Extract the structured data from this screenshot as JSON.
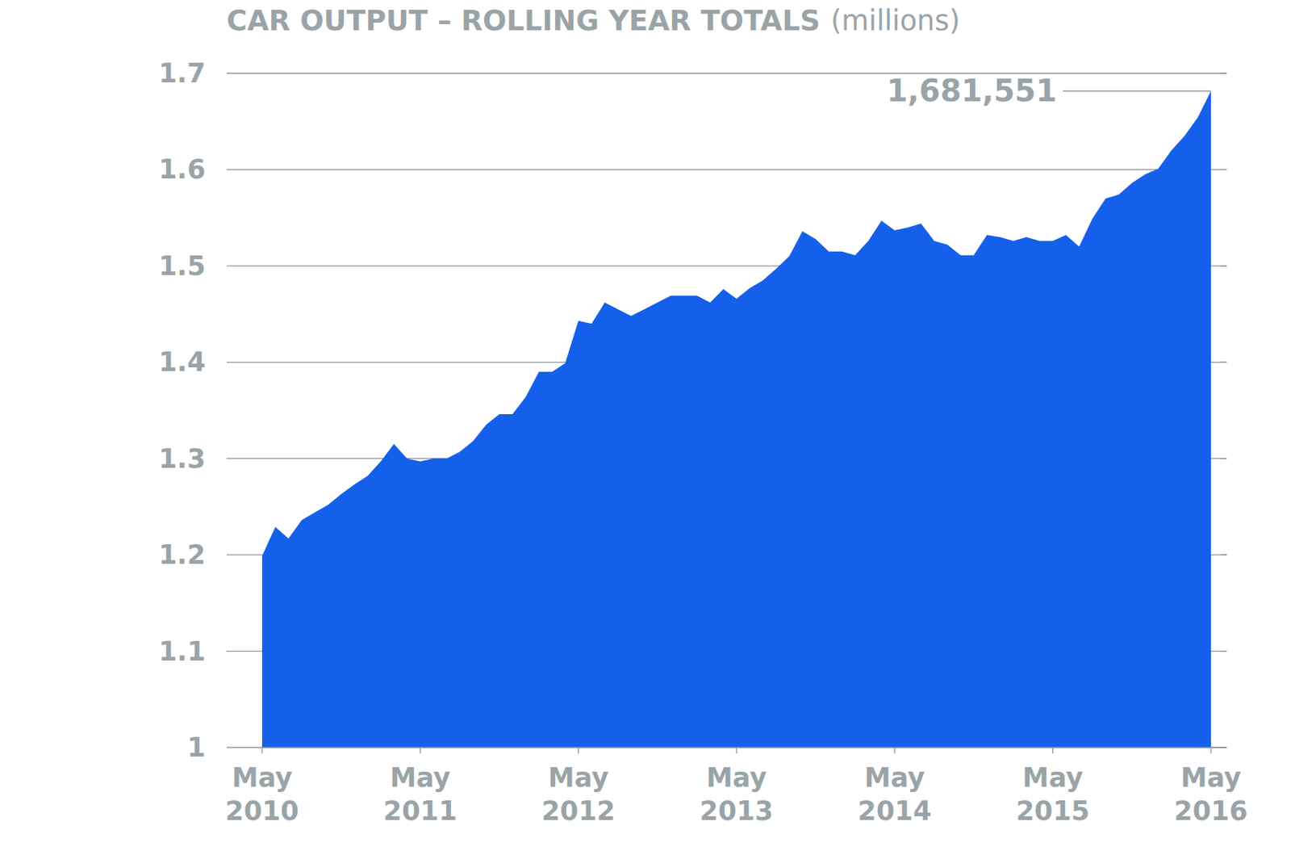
{
  "chart_data": {
    "type": "area",
    "title": "CAR OUTPUT – ROLLING YEAR TOTALS",
    "subtitle": "(millions)",
    "categories": [
      "May 2010",
      null,
      null,
      null,
      null,
      null,
      null,
      null,
      null,
      null,
      null,
      null,
      "May 2011",
      null,
      null,
      null,
      null,
      null,
      null,
      null,
      null,
      null,
      null,
      null,
      "May 2012",
      null,
      null,
      null,
      null,
      null,
      null,
      null,
      null,
      null,
      null,
      null,
      "May 2013",
      null,
      null,
      null,
      null,
      null,
      null,
      null,
      null,
      null,
      null,
      null,
      "May 2014",
      null,
      null,
      null,
      null,
      null,
      null,
      null,
      null,
      null,
      null,
      null,
      "May 2015",
      null,
      null,
      null,
      null,
      null,
      null,
      null,
      null,
      null,
      null,
      null,
      "May 2016"
    ],
    "values": [
      1.199,
      1.229,
      1.217,
      1.236,
      1.244,
      1.252,
      1.263,
      1.273,
      1.282,
      1.297,
      1.315,
      1.3,
      1.297,
      1.3,
      1.3,
      1.307,
      1.318,
      1.335,
      1.346,
      1.346,
      1.364,
      1.39,
      1.39,
      1.399,
      1.443,
      1.44,
      1.462,
      1.455,
      1.448,
      1.455,
      1.462,
      1.469,
      1.469,
      1.469,
      1.462,
      1.476,
      1.466,
      1.477,
      1.485,
      1.497,
      1.51,
      1.536,
      1.528,
      1.515,
      1.515,
      1.511,
      1.526,
      1.547,
      1.537,
      1.54,
      1.544,
      1.526,
      1.522,
      1.511,
      1.511,
      1.532,
      1.53,
      1.526,
      1.53,
      1.526,
      1.526,
      1.532,
      1.52,
      1.549,
      1.57,
      1.574,
      1.586,
      1.595,
      1.601,
      1.62,
      1.635,
      1.654,
      1.681551
    ],
    "color": "#1560eb",
    "ylim": [
      1,
      1.7
    ],
    "yticks": [
      1,
      1.1,
      1.2,
      1.3,
      1.4,
      1.5,
      1.6,
      1.7
    ],
    "grid": true,
    "annotations": [
      {
        "text": "1,681,551"
      }
    ]
  }
}
